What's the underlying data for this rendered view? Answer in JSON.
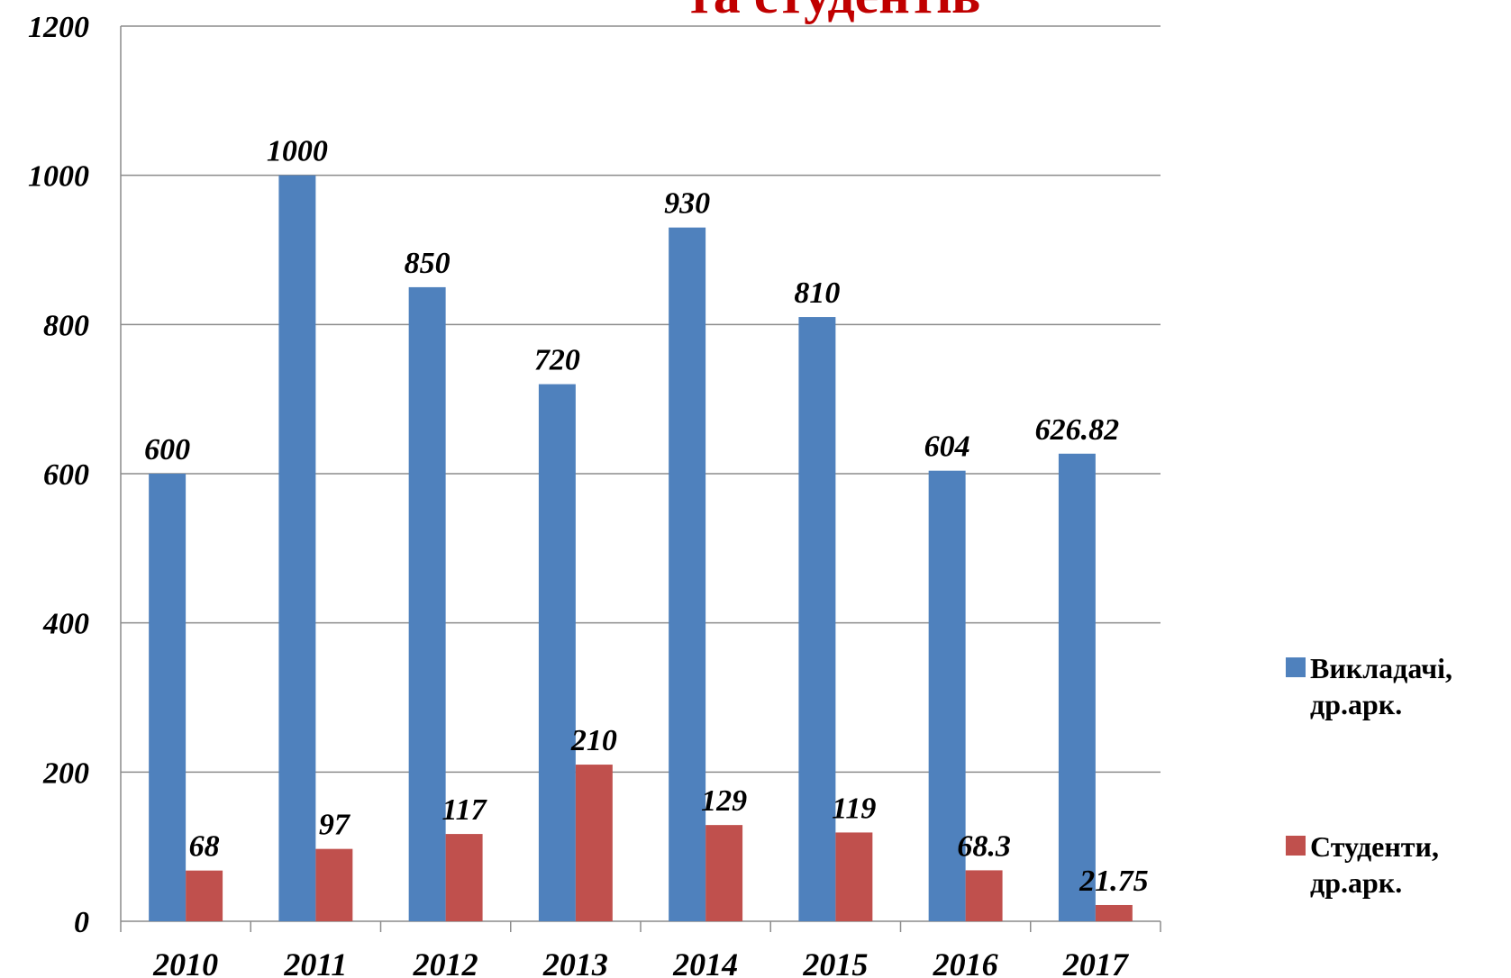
{
  "chart_data": {
    "type": "bar",
    "title": "та студентів",
    "categories": [
      "2010",
      "2011",
      "2012",
      "2013",
      "2014",
      "2015",
      "2016",
      "2017"
    ],
    "series": [
      {
        "name": "Викладачі, др.арк.",
        "color": "#4f81bd",
        "values": [
          600,
          1000,
          850,
          720,
          930,
          810,
          604,
          626.82
        ]
      },
      {
        "name": "Студенти, др.арк.",
        "color": "#c0504d",
        "values": [
          68,
          97,
          117,
          210,
          129,
          119,
          68.3,
          21.75
        ]
      }
    ],
    "ylim": [
      0,
      1200
    ],
    "yticks": [
      0,
      200,
      400,
      600,
      800,
      1000,
      1200
    ],
    "grid": true,
    "legend": "right"
  }
}
